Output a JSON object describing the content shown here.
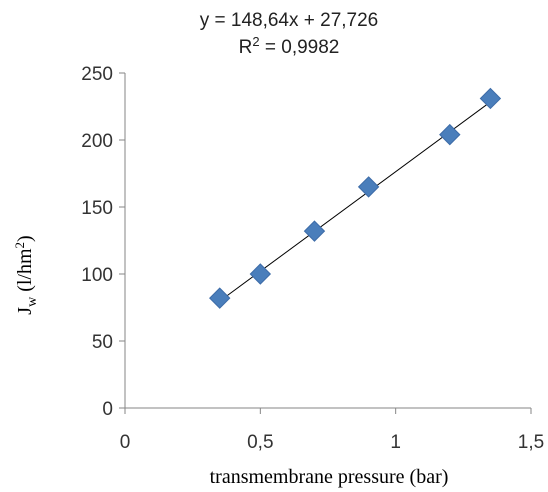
{
  "chart_data": {
    "type": "scatter",
    "title": "",
    "equation": "y = 148,64x + 27,726",
    "r_squared_label": "R",
    "r_squared_sup": "2",
    "r_squared_value": " = 0,9982",
    "xlabel": "transmembrane  pressure (bar)",
    "ylabel_main": "J",
    "ylabel_sub": "w",
    "ylabel_unit": " (l/hm",
    "ylabel_unit_sup": "2",
    "ylabel_unit_close": ")",
    "xlim": [
      0,
      1.5
    ],
    "ylim": [
      0,
      250
    ],
    "x_ticks": [
      0,
      0.5,
      1,
      1.5
    ],
    "x_tick_labels": [
      "0",
      "0,5",
      "1",
      "1,5"
    ],
    "y_ticks": [
      0,
      50,
      100,
      150,
      200,
      250
    ],
    "y_tick_labels": [
      "0",
      "50",
      "100",
      "150",
      "200",
      "250"
    ],
    "grid": false,
    "legend": "none",
    "series": [
      {
        "x": [
          0.35,
          0.5,
          0.7,
          0.9,
          1.2,
          1.35
        ],
        "y": [
          82,
          100,
          132,
          165,
          204,
          231
        ],
        "marker": "diamond",
        "color": "#4a7ebb"
      }
    ],
    "trendline": {
      "slope": 148.64,
      "intercept": 27.726,
      "x_range": [
        0.35,
        1.35
      ],
      "color": "#000000"
    }
  }
}
